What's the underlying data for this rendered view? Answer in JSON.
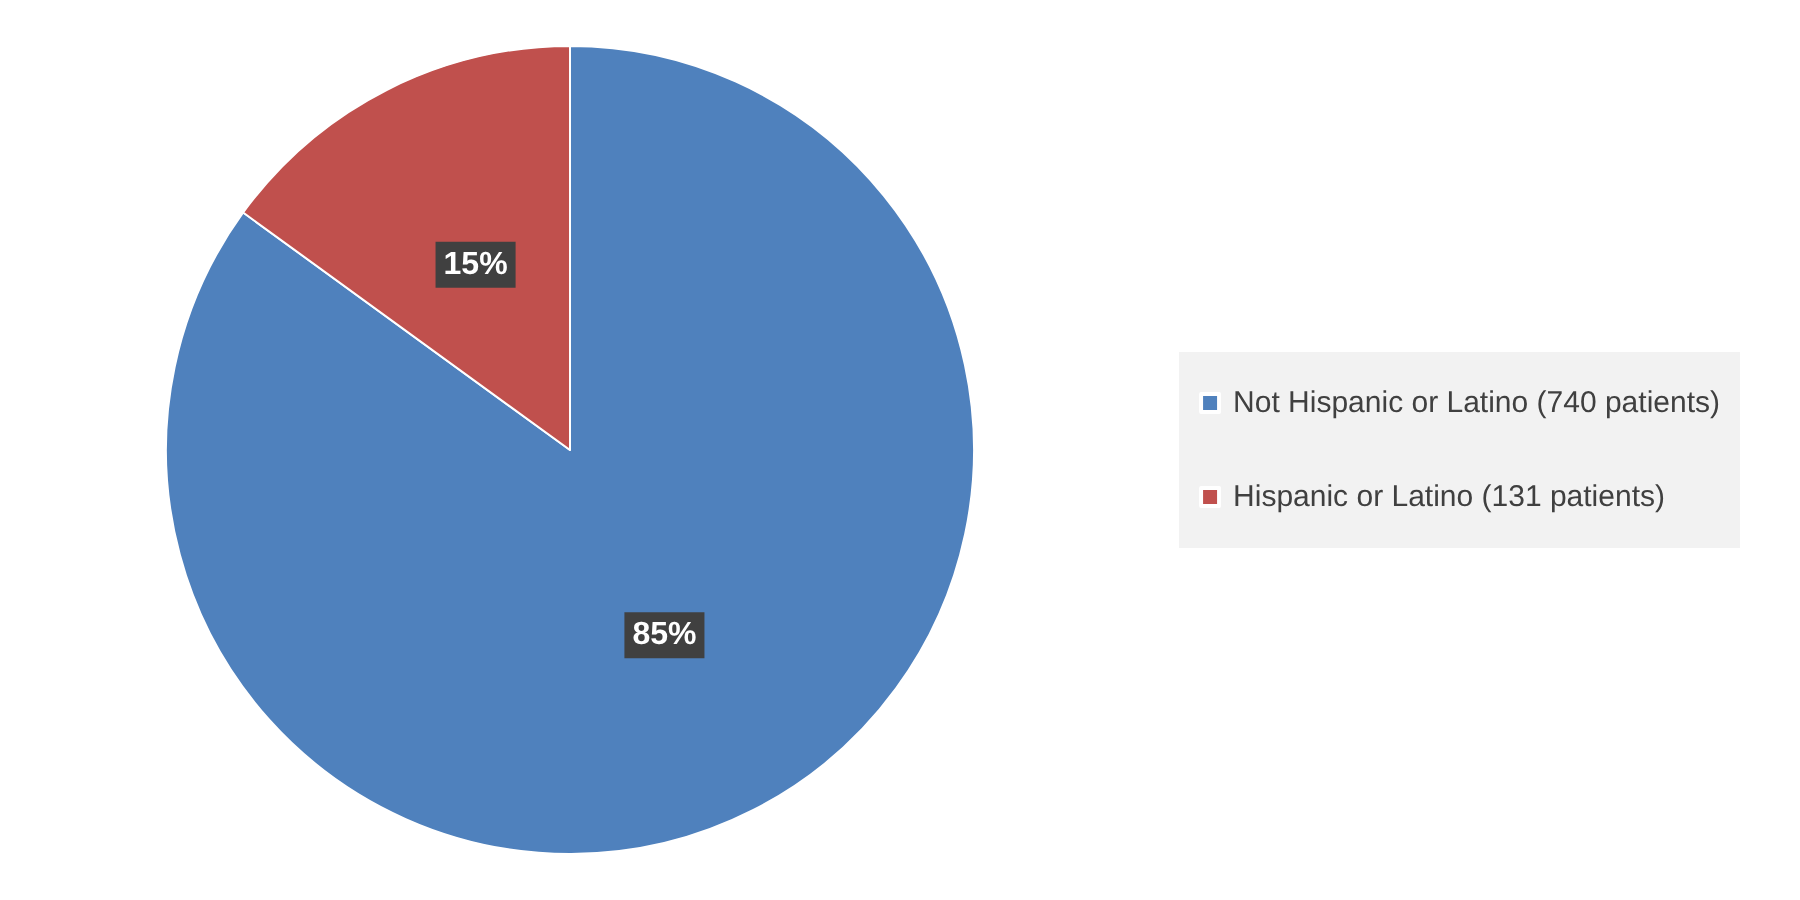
{
  "chart_data": {
    "type": "pie",
    "categories": [
      "Not Hispanic or Latino (740 patients)",
      "Hispanic or Latino (131 patients)"
    ],
    "values": [
      85,
      15
    ],
    "colors": [
      "#4f81bd",
      "#c0504d"
    ],
    "value_labels": [
      "85%",
      "15%"
    ],
    "legend": "right"
  }
}
